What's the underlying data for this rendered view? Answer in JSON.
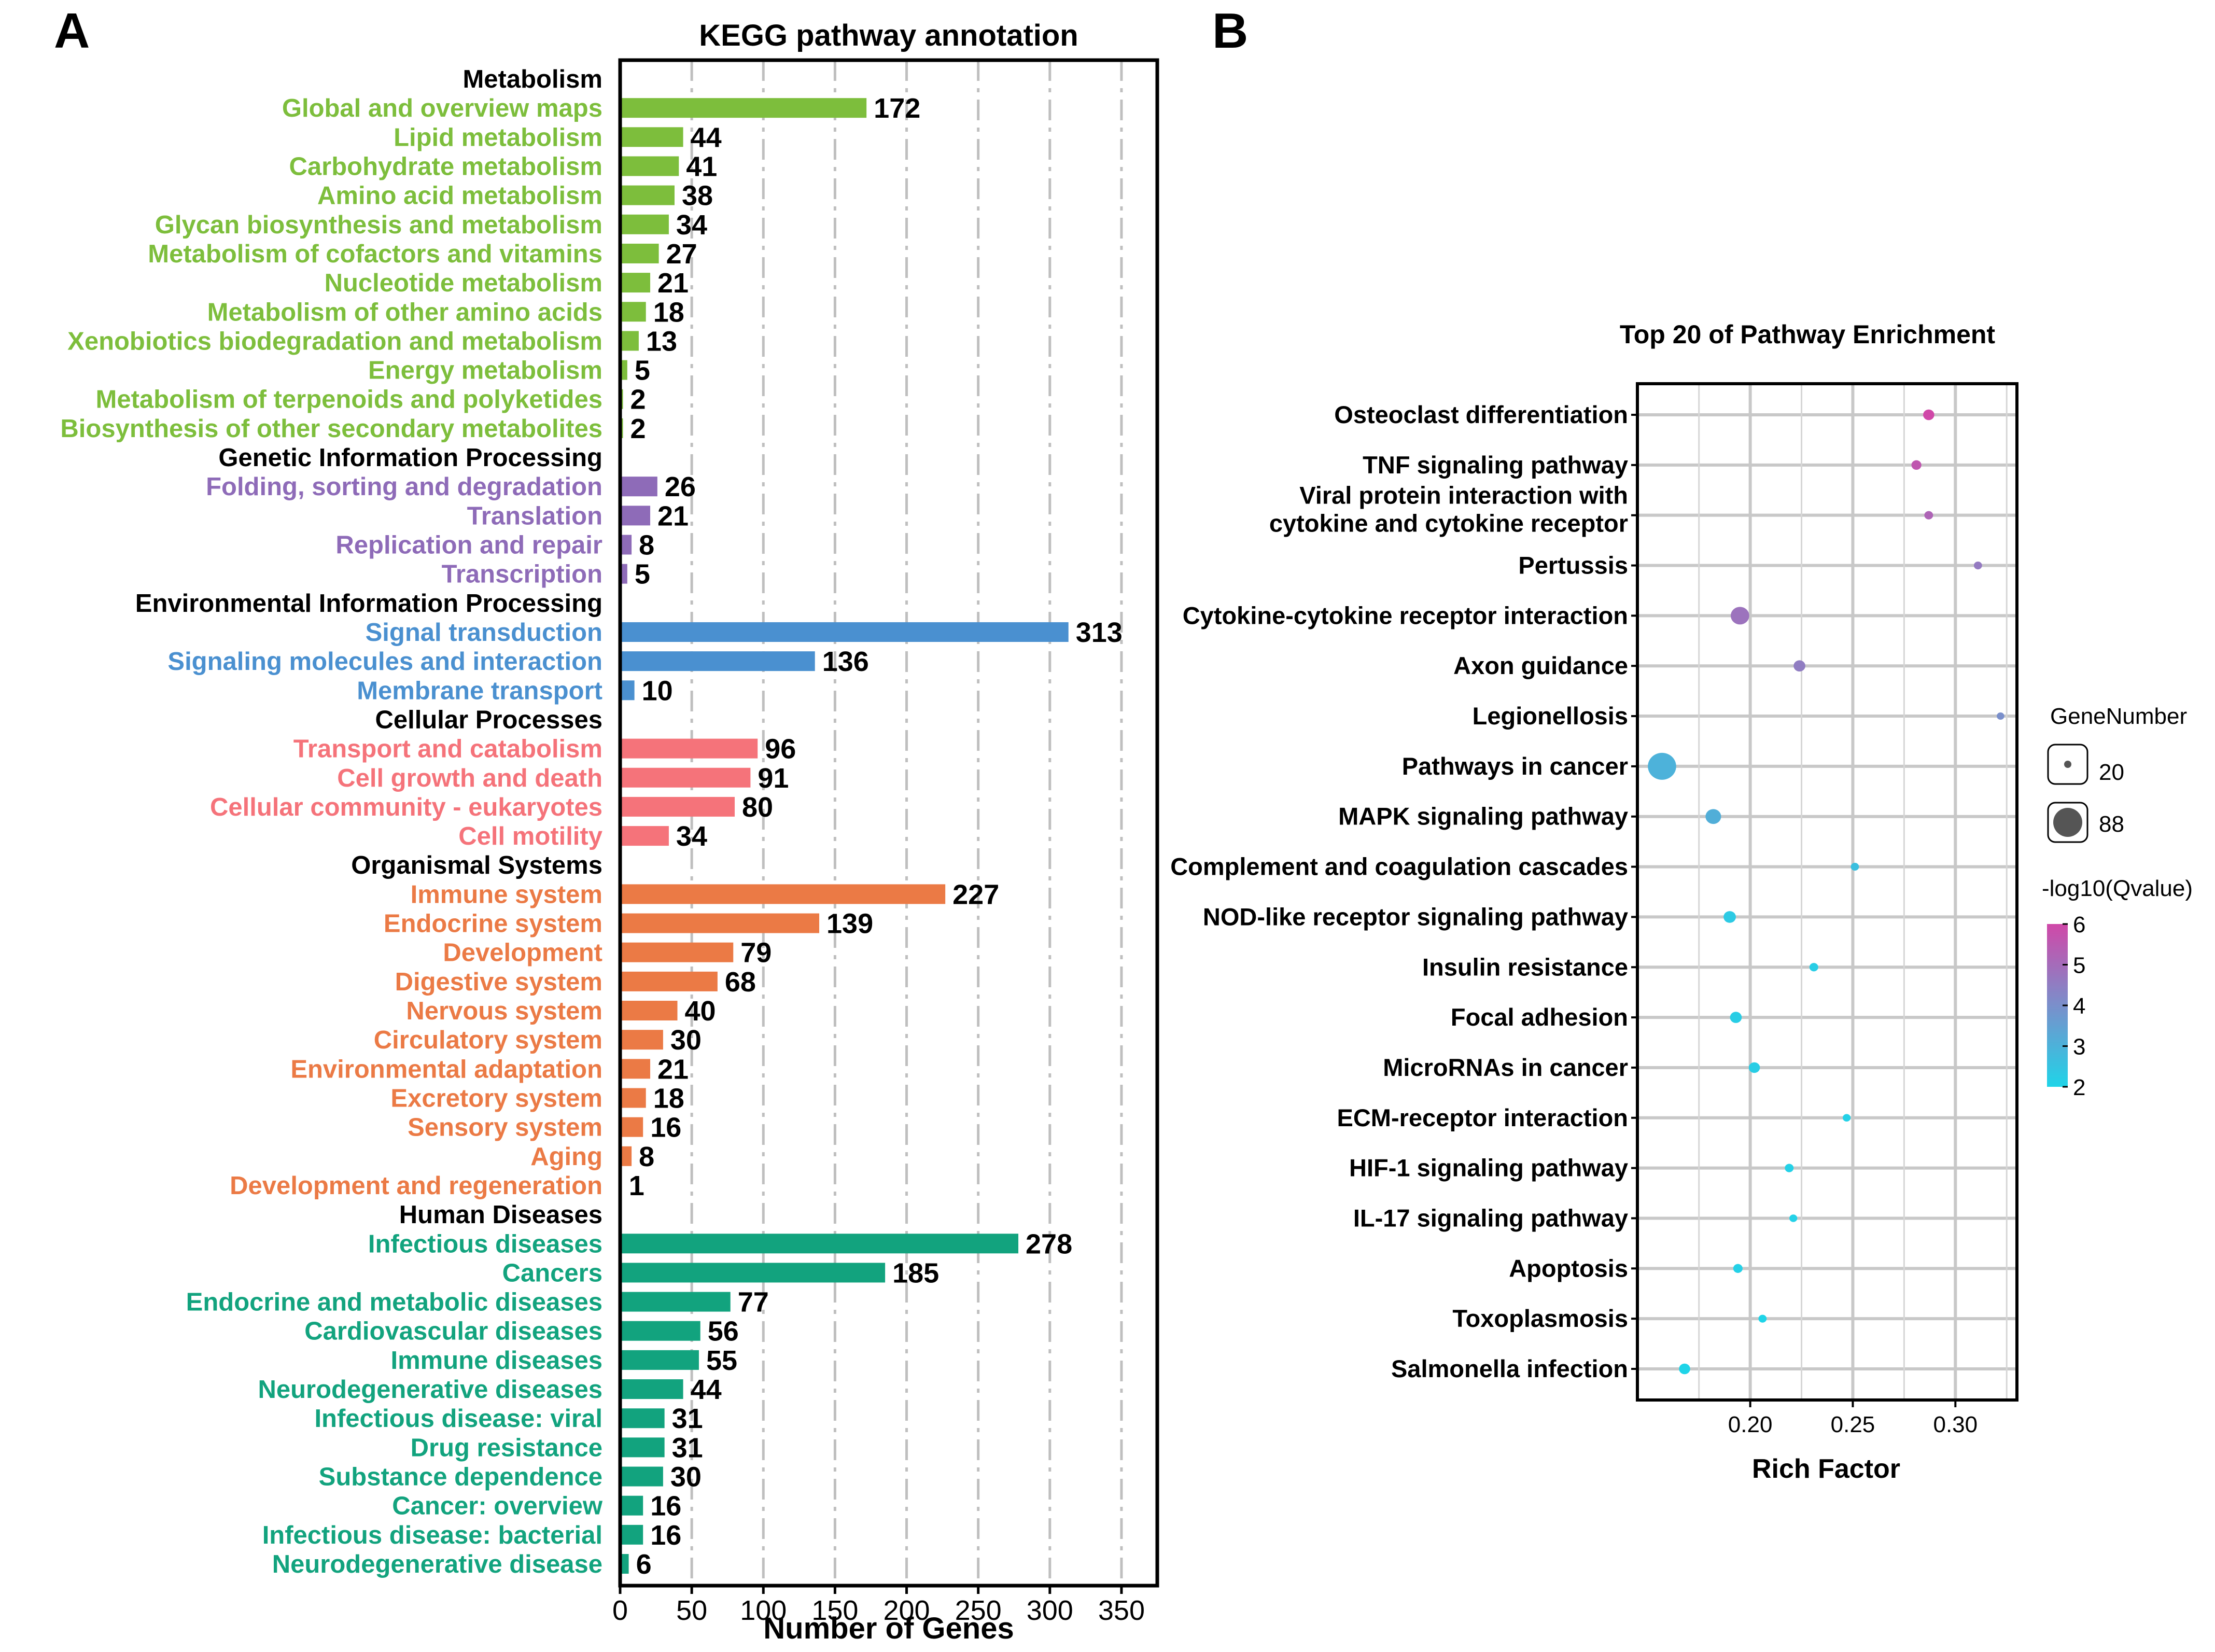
{
  "chart_data": [
    {
      "type": "bar",
      "orientation": "horizontal",
      "panel_label": "A",
      "title": "KEGG pathway annotation",
      "xlabel": "Number of Genes",
      "xlim": [
        0,
        375
      ],
      "xticks": [
        0,
        50,
        100,
        150,
        200,
        250,
        300,
        350
      ],
      "grid": "vertical dashed",
      "groups": [
        {
          "name": "Metabolism",
          "color": "#7DBE3C",
          "items": [
            {
              "label": "Global and overview maps",
              "value": 172
            },
            {
              "label": "Lipid metabolism",
              "value": 44
            },
            {
              "label": "Carbohydrate metabolism",
              "value": 41
            },
            {
              "label": "Amino acid metabolism",
              "value": 38
            },
            {
              "label": "Glycan biosynthesis and metabolism",
              "value": 34
            },
            {
              "label": "Metabolism of cofactors and vitamins",
              "value": 27
            },
            {
              "label": "Nucleotide metabolism",
              "value": 21
            },
            {
              "label": "Metabolism of other amino acids",
              "value": 18
            },
            {
              "label": "Xenobiotics biodegradation and metabolism",
              "value": 13
            },
            {
              "label": "Energy metabolism",
              "value": 5
            },
            {
              "label": "Metabolism of terpenoids and polyketides",
              "value": 2
            },
            {
              "label": "Biosynthesis of other secondary metabolites",
              "value": 2
            }
          ]
        },
        {
          "name": "Genetic Information Processing",
          "color": "#8E6BB8",
          "items": [
            {
              "label": "Folding, sorting and degradation",
              "value": 26
            },
            {
              "label": "Translation",
              "value": 21
            },
            {
              "label": "Replication and repair",
              "value": 8
            },
            {
              "label": "Transcription",
              "value": 5
            }
          ]
        },
        {
          "name": "Environmental Information Processing",
          "color": "#4A90D0",
          "items": [
            {
              "label": "Signal transduction",
              "value": 313
            },
            {
              "label": "Signaling molecules and interaction",
              "value": 136
            },
            {
              "label": "Membrane transport",
              "value": 10
            }
          ]
        },
        {
          "name": "Cellular Processes",
          "color": "#F5737A",
          "items": [
            {
              "label": "Transport and catabolism",
              "value": 96
            },
            {
              "label": "Cell growth and death",
              "value": 91
            },
            {
              "label": "Cellular community - eukaryotes",
              "value": 80
            },
            {
              "label": "Cell motility",
              "value": 34
            }
          ]
        },
        {
          "name": "Organismal Systems",
          "color": "#EB7A45",
          "items": [
            {
              "label": "Immune system",
              "value": 227
            },
            {
              "label": "Endocrine system",
              "value": 139
            },
            {
              "label": "Development",
              "value": 79
            },
            {
              "label": "Digestive system",
              "value": 68
            },
            {
              "label": "Nervous system",
              "value": 40
            },
            {
              "label": "Circulatory system",
              "value": 30
            },
            {
              "label": "Environmental adaptation",
              "value": 21
            },
            {
              "label": "Excretory system",
              "value": 18
            },
            {
              "label": "Sensory system",
              "value": 16
            },
            {
              "label": "Aging",
              "value": 8
            },
            {
              "label": "Development and regeneration",
              "value": 1
            }
          ]
        },
        {
          "name": "Human Diseases",
          "color": "#12A37E",
          "items": [
            {
              "label": "Infectious diseases",
              "value": 278
            },
            {
              "label": "Cancers",
              "value": 185
            },
            {
              "label": "Endocrine and metabolic diseases",
              "value": 77
            },
            {
              "label": "Cardiovascular diseases",
              "value": 56
            },
            {
              "label": "Immune diseases",
              "value": 55
            },
            {
              "label": "Neurodegenerative diseases",
              "value": 44
            },
            {
              "label": "Infectious disease: viral",
              "value": 31
            },
            {
              "label": "Drug resistance",
              "value": 31
            },
            {
              "label": "Substance dependence",
              "value": 30
            },
            {
              "label": "Cancer: overview",
              "value": 16
            },
            {
              "label": "Infectious disease: bacterial",
              "value": 16
            },
            {
              "label": "Neurodegenerative disease",
              "value": 6
            }
          ]
        }
      ]
    },
    {
      "type": "scatter",
      "subtype": "bubble",
      "panel_label": "B",
      "title": "Top 20 of Pathway Enrichment",
      "xlabel": "Rich Factor",
      "xlim": [
        0.145,
        0.33
      ],
      "xticks": [
        0.2,
        0.25,
        0.3
      ],
      "xtick_labels": [
        "0.20",
        "0.25",
        "0.30"
      ],
      "grid": "on",
      "size_legend_title": "GeneNumber",
      "size_legend": [
        20,
        88
      ],
      "color_legend_title": "-log10(Qvalue)",
      "color_range": [
        2,
        6
      ],
      "color_ticks": [
        6,
        5,
        4,
        3,
        2
      ],
      "color_low": "#1FD4E8",
      "color_high": "#D048A8",
      "points": [
        {
          "label": "Osteoclast differentiation",
          "rich_factor": 0.287,
          "genes": 30,
          "qvalue_log": 6.0
        },
        {
          "label": "TNF signaling pathway",
          "rich_factor": 0.281,
          "genes": 26,
          "qvalue_log": 5.6
        },
        {
          "label": [
            "Viral protein interaction with",
            "cytokine and cytokine receptor"
          ],
          "rich_factor": 0.287,
          "genes": 22,
          "qvalue_log": 5.2
        },
        {
          "label": "Pertussis",
          "rich_factor": 0.311,
          "genes": 20,
          "qvalue_log": 4.6
        },
        {
          "label": "Cytokine-cytokine receptor interaction",
          "rich_factor": 0.195,
          "genes": 55,
          "qvalue_log": 4.8
        },
        {
          "label": "Axon guidance",
          "rich_factor": 0.224,
          "genes": 32,
          "qvalue_log": 4.5
        },
        {
          "label": "Legionellosis",
          "rich_factor": 0.322,
          "genes": 18,
          "qvalue_log": 4.0
        },
        {
          "label": "Pathways in cancer",
          "rich_factor": 0.157,
          "genes": 88,
          "qvalue_log": 3.0
        },
        {
          "label": "MAPK signaling pathway",
          "rich_factor": 0.182,
          "genes": 45,
          "qvalue_log": 3.1
        },
        {
          "label": "Complement and coagulation cascades",
          "rich_factor": 0.251,
          "genes": 20,
          "qvalue_log": 2.6
        },
        {
          "label": "NOD-like receptor signaling pathway",
          "rich_factor": 0.19,
          "genes": 34,
          "qvalue_log": 2.3
        },
        {
          "label": "Insulin resistance",
          "rich_factor": 0.231,
          "genes": 22,
          "qvalue_log": 2.2
        },
        {
          "label": "Focal adhesion",
          "rich_factor": 0.193,
          "genes": 32,
          "qvalue_log": 2.2
        },
        {
          "label": "MicroRNAs in cancer",
          "rich_factor": 0.202,
          "genes": 30,
          "qvalue_log": 2.2
        },
        {
          "label": "ECM-receptor interaction",
          "rich_factor": 0.247,
          "genes": 19,
          "qvalue_log": 2.1
        },
        {
          "label": "HIF-1 signaling pathway",
          "rich_factor": 0.219,
          "genes": 22,
          "qvalue_log": 2.1
        },
        {
          "label": "IL-17 signaling pathway",
          "rich_factor": 0.221,
          "genes": 19,
          "qvalue_log": 2.1
        },
        {
          "label": "Apoptosis",
          "rich_factor": 0.194,
          "genes": 24,
          "qvalue_log": 2.1
        },
        {
          "label": "Toxoplasmosis",
          "rich_factor": 0.206,
          "genes": 20,
          "qvalue_log": 2.0
        },
        {
          "label": "Salmonella infection",
          "rich_factor": 0.168,
          "genes": 30,
          "qvalue_log": 2.0
        }
      ]
    }
  ]
}
